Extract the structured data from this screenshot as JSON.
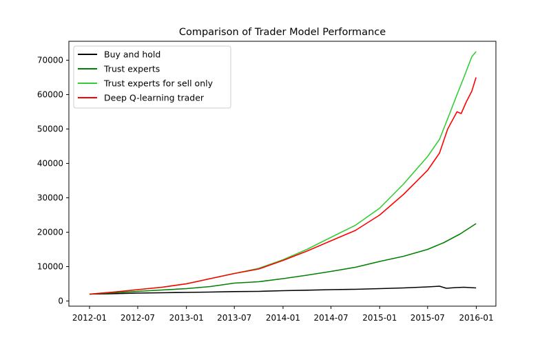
{
  "chart_data": {
    "type": "line",
    "title": "Comparison of Trader Model Performance",
    "xlabel": "",
    "ylabel": "",
    "x_ticks": [
      "2012-01",
      "2012-07",
      "2013-01",
      "2013-07",
      "2014-01",
      "2014-07",
      "2015-01",
      "2015-07",
      "2016-01"
    ],
    "y_ticks": [
      0,
      10000,
      20000,
      30000,
      40000,
      50000,
      60000,
      70000
    ],
    "xlim": [
      "2011-10-15",
      "2016-03-15"
    ],
    "ylim": [
      -1500,
      75500
    ],
    "grid": false,
    "legend_position": "top-left",
    "series": [
      {
        "name": "Buy and hold",
        "color": "#000000",
        "points": [
          [
            "2012-01-01",
            2000
          ],
          [
            "2012-04-01",
            2150
          ],
          [
            "2012-07-01",
            2300
          ],
          [
            "2012-10-01",
            2400
          ],
          [
            "2013-01-01",
            2500
          ],
          [
            "2013-04-01",
            2600
          ],
          [
            "2013-07-01",
            2750
          ],
          [
            "2013-10-01",
            2800
          ],
          [
            "2014-01-01",
            3000
          ],
          [
            "2014-04-01",
            3150
          ],
          [
            "2014-07-01",
            3300
          ],
          [
            "2014-10-01",
            3400
          ],
          [
            "2015-01-01",
            3600
          ],
          [
            "2015-04-01",
            3800
          ],
          [
            "2015-07-01",
            4100
          ],
          [
            "2015-08-15",
            4300
          ],
          [
            "2015-09-10",
            3700
          ],
          [
            "2015-10-15",
            3900
          ],
          [
            "2015-11-15",
            4000
          ],
          [
            "2015-12-31",
            3800
          ]
        ]
      },
      {
        "name": "Trust experts",
        "color": "#008000",
        "points": [
          [
            "2012-01-01",
            2000
          ],
          [
            "2012-04-01",
            2400
          ],
          [
            "2012-07-01",
            2800
          ],
          [
            "2012-10-01",
            3200
          ],
          [
            "2013-01-01",
            3600
          ],
          [
            "2013-04-01",
            4200
          ],
          [
            "2013-07-01",
            5200
          ],
          [
            "2013-10-01",
            5600
          ],
          [
            "2014-01-01",
            6500
          ],
          [
            "2014-04-01",
            7500
          ],
          [
            "2014-07-01",
            8600
          ],
          [
            "2014-10-01",
            9800
          ],
          [
            "2015-01-01",
            11500
          ],
          [
            "2015-04-01",
            13000
          ],
          [
            "2015-07-01",
            15000
          ],
          [
            "2015-09-01",
            17000
          ],
          [
            "2015-11-01",
            19500
          ],
          [
            "2015-12-31",
            22500
          ]
        ]
      },
      {
        "name": "Trust experts for sell only",
        "color": "#32cd32",
        "points": [
          [
            "2012-01-01",
            2000
          ],
          [
            "2012-04-01",
            2600
          ],
          [
            "2012-07-01",
            3300
          ],
          [
            "2012-10-01",
            4000
          ],
          [
            "2013-01-01",
            5000
          ],
          [
            "2013-04-01",
            6500
          ],
          [
            "2013-07-01",
            8000
          ],
          [
            "2013-10-01",
            9500
          ],
          [
            "2014-01-01",
            12000
          ],
          [
            "2014-04-01",
            15000
          ],
          [
            "2014-07-01",
            18500
          ],
          [
            "2014-10-01",
            22000
          ],
          [
            "2015-01-01",
            27000
          ],
          [
            "2015-04-01",
            34000
          ],
          [
            "2015-07-01",
            42000
          ],
          [
            "2015-08-15",
            47000
          ],
          [
            "2015-09-15",
            53000
          ],
          [
            "2015-10-15",
            59000
          ],
          [
            "2015-11-15",
            65000
          ],
          [
            "2015-12-15",
            71000
          ],
          [
            "2015-12-31",
            72500
          ]
        ]
      },
      {
        "name": "Deep Q-learning trader",
        "color": "#ff0000",
        "points": [
          [
            "2012-01-01",
            2000
          ],
          [
            "2012-04-01",
            2600
          ],
          [
            "2012-07-01",
            3300
          ],
          [
            "2012-10-01",
            4000
          ],
          [
            "2013-01-01",
            5000
          ],
          [
            "2013-04-01",
            6500
          ],
          [
            "2013-07-01",
            8000
          ],
          [
            "2013-10-01",
            9300
          ],
          [
            "2014-01-01",
            11800
          ],
          [
            "2014-04-01",
            14500
          ],
          [
            "2014-07-01",
            17500
          ],
          [
            "2014-10-01",
            20500
          ],
          [
            "2015-01-01",
            25000
          ],
          [
            "2015-04-01",
            31000
          ],
          [
            "2015-07-01",
            38000
          ],
          [
            "2015-08-15",
            43000
          ],
          [
            "2015-09-15",
            50000
          ],
          [
            "2015-10-20",
            55000
          ],
          [
            "2015-11-05",
            54500
          ],
          [
            "2015-11-25",
            58000
          ],
          [
            "2015-12-15",
            61000
          ],
          [
            "2015-12-31",
            65000
          ]
        ]
      }
    ]
  }
}
